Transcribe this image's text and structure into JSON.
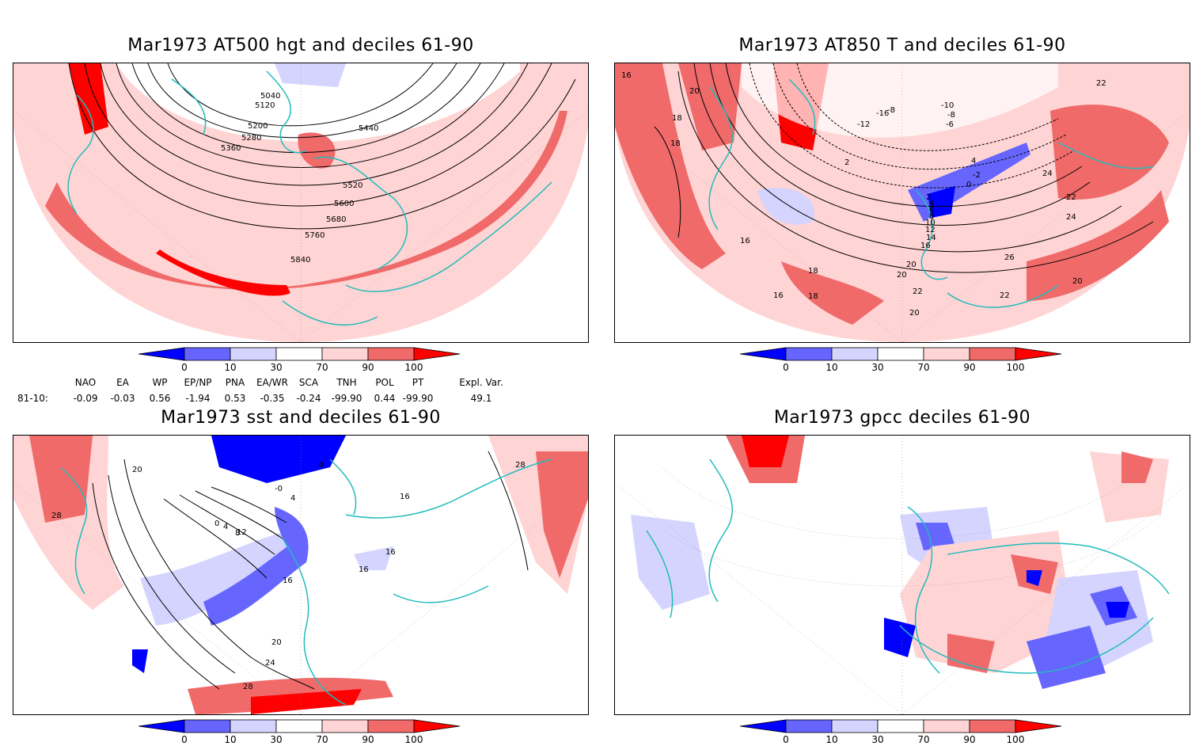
{
  "panels": [
    {
      "id": "tl",
      "title": "Mar1973 AT500 hgt and deciles 61-90",
      "contour_labels": [
        "5040",
        "5120",
        "5200",
        "5280",
        "5360",
        "5440",
        "5520",
        "5600",
        "5680",
        "5760",
        "5840"
      ]
    },
    {
      "id": "tr",
      "title": "Mar1973 AT850 T and deciles 61-90",
      "contour_labels": [
        "16",
        "20",
        "18",
        "18",
        "-10",
        "-8",
        "-6",
        "-16",
        "-8",
        "-12",
        "2",
        "4",
        "-2",
        "0",
        "2",
        "4",
        "6",
        "8",
        "10",
        "12",
        "14",
        "16",
        "16",
        "18",
        "20",
        "22",
        "24",
        "22",
        "20",
        "26",
        "24",
        "22",
        "22",
        "20",
        "18",
        "16",
        "20"
      ]
    },
    {
      "id": "bl",
      "title": "Mar1973 sst and deciles 61-90",
      "contour_labels": [
        "20",
        "28",
        "0",
        "4",
        "8",
        "12",
        "16",
        "16",
        "16",
        "16",
        "20",
        "24",
        "28",
        "28",
        "-0",
        "0",
        "4"
      ]
    },
    {
      "id": "br",
      "title": "Mar1973 gpcc deciles 61-90",
      "contour_labels": []
    }
  ],
  "colorbar": {
    "ticks": [
      "0",
      "10",
      "30",
      "70",
      "90",
      "100"
    ],
    "colors": [
      "#0000ff",
      "#6666ff",
      "#d4d4ff",
      "#ffffff",
      "#ffd4d4",
      "#f06a6a",
      "#ff0000"
    ]
  },
  "indices": {
    "headers": [
      "NAO",
      "EA",
      "WP",
      "EP/NP",
      "PNA",
      "EA/WR",
      "SCA",
      "TNH",
      "POL",
      "PT",
      "Expl. Var."
    ],
    "row_label": "81-10:",
    "values": [
      "-0.09",
      "-0.03",
      "0.56",
      "-1.94",
      "0.53",
      "-0.35",
      "-0.24",
      "-99.90",
      "0.44",
      "-99.90",
      "49.1"
    ]
  }
}
